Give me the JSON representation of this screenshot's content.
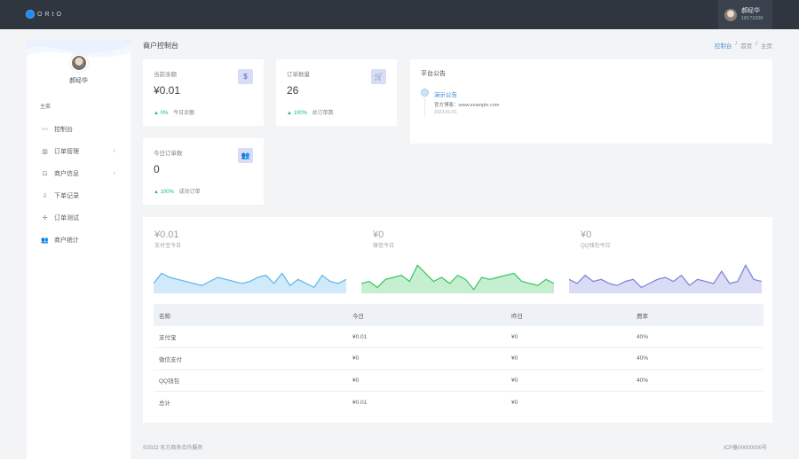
{
  "topbar": {
    "logo_text": "ORtO",
    "user": {
      "name": "郝经华",
      "sub": "18171000"
    }
  },
  "sidebar": {
    "user_name": "郝经华",
    "section": "主菜",
    "items": [
      {
        "icon": "chart-line-icon",
        "glyph": "〰",
        "label": "控制台",
        "arrow": ""
      },
      {
        "icon": "table-icon",
        "glyph": "▥",
        "label": "订单管理",
        "arrow": "›"
      },
      {
        "icon": "shop-icon",
        "glyph": "⊡",
        "label": "商户信息",
        "arrow": "›"
      },
      {
        "icon": "download-icon",
        "glyph": "⇩",
        "label": "下单记录",
        "arrow": ""
      },
      {
        "icon": "pin-icon",
        "glyph": "✢",
        "label": "订单测试",
        "arrow": ""
      },
      {
        "icon": "users-icon",
        "glyph": "👥",
        "label": "商户统计",
        "arrow": ""
      }
    ]
  },
  "header": {
    "title": "商户控制台",
    "breadcrumb": [
      "控制台",
      "首页",
      "主页"
    ]
  },
  "stats": [
    {
      "title": "当前余额",
      "icon": "dollar-icon",
      "glyph": "$",
      "value": "¥0.01",
      "trend": "0%",
      "note": "今日余额"
    },
    {
      "title": "订单数量",
      "icon": "cart-icon",
      "glyph": "🛒",
      "value": "26",
      "trend": "100%",
      "note": "总订单数"
    },
    {
      "title": "今日订单数",
      "icon": "users-icon",
      "glyph": "👥",
      "value": "0",
      "trend": "100%",
      "note": "成功订单"
    }
  ],
  "notice": {
    "title": "平台公告",
    "head": "演示公告",
    "body": "官方博客：www.example.com",
    "date": "2023-01-01"
  },
  "minis": [
    {
      "value": "¥0.01",
      "label": "支付宝今日"
    },
    {
      "value": "¥0",
      "label": "微信今日"
    },
    {
      "value": "¥0",
      "label": "QQ钱包今日"
    }
  ],
  "chart_data": {
    "type": "area",
    "series": [
      {
        "values": [
          4,
          9,
          7,
          6,
          5,
          4,
          3,
          5,
          7,
          6,
          5,
          4,
          5,
          7,
          8,
          4,
          9,
          3,
          6,
          4,
          2,
          8,
          5,
          4,
          6
        ],
        "color": "#5ab4ea"
      },
      {
        "values": [
          4,
          5,
          2,
          6,
          7,
          8,
          5,
          13,
          9,
          5,
          7,
          4,
          8,
          6,
          1,
          7,
          6,
          7,
          8,
          9,
          5,
          4,
          3,
          6,
          4
        ],
        "color": "#34c759"
      },
      {
        "values": [
          6,
          4,
          8,
          5,
          6,
          4,
          3,
          5,
          6,
          2,
          4,
          6,
          7,
          5,
          8,
          3,
          6,
          5,
          4,
          10,
          4,
          5,
          13,
          6,
          5
        ],
        "color": "#7a7fd8"
      }
    ]
  },
  "table": {
    "headers": [
      "名称",
      "今日",
      "昨日",
      "费率"
    ],
    "rows": [
      [
        "支付宝",
        "¥0.01",
        "¥0",
        "40%"
      ],
      [
        "微信支付",
        "¥0",
        "¥0",
        "40%"
      ],
      [
        "QQ钱包",
        "¥0",
        "¥0",
        "40%"
      ],
      [
        "总计",
        "¥0.01",
        "¥0",
        ""
      ]
    ]
  },
  "footer": {
    "left": "©2022 东方商务合作服务",
    "right": "ICP备00000000号"
  }
}
